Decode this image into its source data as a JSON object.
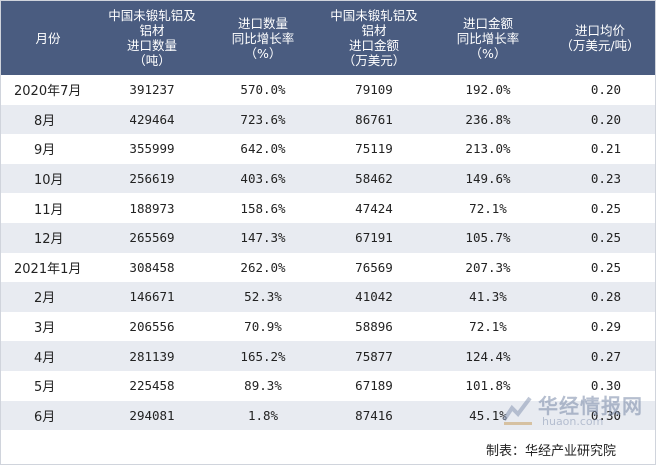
{
  "table": {
    "headers": [
      [
        "月份"
      ],
      [
        "中国未锻轧铝及",
        "铝材",
        "进口数量",
        "（吨）"
      ],
      [
        "进口数量",
        "同比增长率",
        "（%）"
      ],
      [
        "中国未锻轧铝及",
        "铝材",
        "进口金额",
        "（万美元）"
      ],
      [
        "进口金额",
        "同比增长率",
        "（%）"
      ],
      [
        "进口均价",
        "（万美元/吨）"
      ]
    ],
    "rows": [
      {
        "month": "2020年7月",
        "qty": "391237",
        "qty_yoy": "570.0%",
        "amount": "79109",
        "amount_yoy": "192.0%",
        "price": "0.20"
      },
      {
        "month": "8月",
        "qty": "429464",
        "qty_yoy": "723.6%",
        "amount": "86761",
        "amount_yoy": "236.8%",
        "price": "0.20"
      },
      {
        "month": "9月",
        "qty": "355999",
        "qty_yoy": "642.0%",
        "amount": "75119",
        "amount_yoy": "213.0%",
        "price": "0.21"
      },
      {
        "month": "10月",
        "qty": "256619",
        "qty_yoy": "403.6%",
        "amount": "58462",
        "amount_yoy": "149.6%",
        "price": "0.23"
      },
      {
        "month": "11月",
        "qty": "188973",
        "qty_yoy": "158.6%",
        "amount": "47424",
        "amount_yoy": "72.1%",
        "price": "0.25"
      },
      {
        "month": "12月",
        "qty": "265569",
        "qty_yoy": "147.3%",
        "amount": "67191",
        "amount_yoy": "105.7%",
        "price": "0.25"
      },
      {
        "month": "2021年1月",
        "qty": "308458",
        "qty_yoy": "262.0%",
        "amount": "76569",
        "amount_yoy": "207.3%",
        "price": "0.25"
      },
      {
        "month": "2月",
        "qty": "146671",
        "qty_yoy": "52.3%",
        "amount": "41042",
        "amount_yoy": "41.3%",
        "price": "0.28"
      },
      {
        "month": "3月",
        "qty": "206556",
        "qty_yoy": "70.9%",
        "amount": "58896",
        "amount_yoy": "72.1%",
        "price": "0.29"
      },
      {
        "month": "4月",
        "qty": "281139",
        "qty_yoy": "165.2%",
        "amount": "75877",
        "amount_yoy": "124.4%",
        "price": "0.27"
      },
      {
        "month": "5月",
        "qty": "225458",
        "qty_yoy": "89.3%",
        "amount": "67189",
        "amount_yoy": "101.8%",
        "price": "0.30"
      },
      {
        "month": "6月",
        "qty": "294081",
        "qty_yoy": "1.8%",
        "amount": "87416",
        "amount_yoy": "45.1%",
        "price": "0.30"
      }
    ]
  },
  "source": "制表：华经产业研究院",
  "watermark": {
    "name": "华经情报网",
    "url": "huaon.com"
  },
  "colors": {
    "header_bg": "#4a5c80",
    "stripe": "#e8ebf1"
  }
}
